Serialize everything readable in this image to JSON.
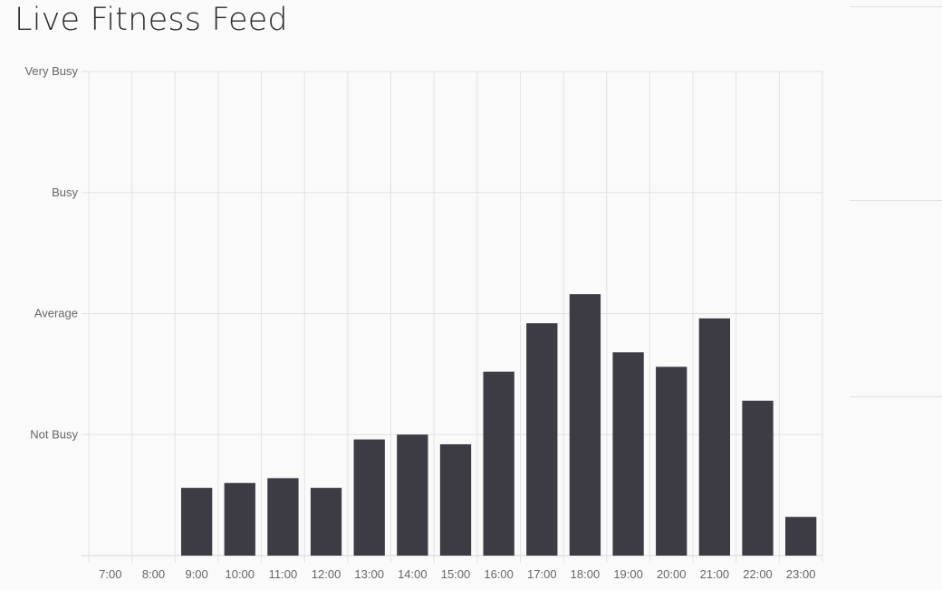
{
  "page": {
    "title": "Live Fitness Feed"
  },
  "chart_data": {
    "type": "bar",
    "categories": [
      "7:00",
      "8:00",
      "9:00",
      "10:00",
      "11:00",
      "12:00",
      "13:00",
      "14:00",
      "15:00",
      "16:00",
      "17:00",
      "18:00",
      "19:00",
      "20:00",
      "21:00",
      "22:00",
      "23:00"
    ],
    "values": [
      0,
      0,
      0.56,
      0.6,
      0.64,
      0.56,
      0.96,
      1.0,
      0.92,
      1.52,
      1.92,
      2.16,
      1.68,
      1.56,
      1.96,
      1.28,
      0.32
    ],
    "ylim": [
      0,
      4
    ],
    "yticks": [
      {
        "value": 1,
        "label": "Not Busy"
      },
      {
        "value": 2,
        "label": "Average"
      },
      {
        "value": 3,
        "label": "Busy"
      },
      {
        "value": 4,
        "label": "Very Busy"
      }
    ],
    "grid": true,
    "bar_color": "#3d3c45",
    "grid_color": "#e2e2e2"
  }
}
